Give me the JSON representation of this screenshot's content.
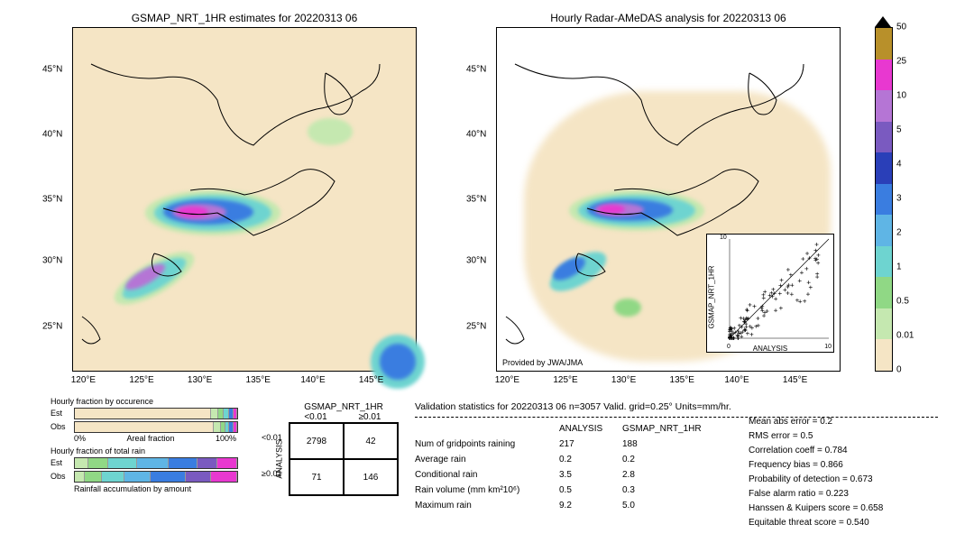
{
  "left_map": {
    "title": "GSMAP_NRT_1HR estimates for 20220313 06",
    "x_ticks": [
      "120°E",
      "125°E",
      "130°E",
      "135°E",
      "140°E",
      "145°E"
    ],
    "y_ticks": [
      "25°N",
      "30°N",
      "35°N",
      "40°N",
      "45°N"
    ],
    "xlim": [
      119,
      149
    ],
    "ylim": [
      21,
      48
    ],
    "bg_color": "#f5e5c5"
  },
  "right_map": {
    "title": "Hourly Radar-AMeDAS analysis for 20220313 06",
    "x_ticks": [
      "120°E",
      "125°E",
      "130°E",
      "135°E",
      "140°E",
      "145°E"
    ],
    "y_ticks": [
      "25°N",
      "30°N",
      "35°N",
      "40°N",
      "45°N"
    ],
    "attribution": "Provided by JWA/JMA"
  },
  "colorbar": {
    "labels": [
      "0",
      "0.01",
      "0.5",
      "1",
      "2",
      "3",
      "4",
      "5",
      "10",
      "25",
      "50"
    ],
    "colors": [
      "#f5e5c5",
      "#c5e8b0",
      "#90d885",
      "#6ed4d0",
      "#5fb5e5",
      "#3a7de0",
      "#2a3fb8",
      "#7a5ac0",
      "#b575d5",
      "#e838d0",
      "#b8902a"
    ],
    "arrow_top": "#000000"
  },
  "scatter": {
    "xlabel": "ANALYSIS",
    "ylabel": "GSMAP_NRT_1HR",
    "xlim": [
      0,
      10
    ],
    "ylim": [
      0,
      10
    ],
    "ticks": [
      0,
      2,
      4,
      6,
      8,
      10
    ]
  },
  "contingency": {
    "col_header": "GSMAP_NRT_1HR",
    "row_header": "ANALYSIS",
    "col_labels": [
      "<0.01",
      "≥0.01"
    ],
    "row_labels": [
      "<0.01",
      "≥0.01"
    ],
    "cells": [
      [
        2798,
        42
      ],
      [
        71,
        146
      ]
    ]
  },
  "bars": {
    "occurrence_title": "Hourly fraction by occurence",
    "totalrain_title": "Hourly fraction of total rain",
    "accum_title": "Rainfall accumulation by amount",
    "row_labels": [
      "Est",
      "Obs"
    ],
    "x_axis": [
      "0%",
      "Areal fraction",
      "100%"
    ],
    "occ_est": [
      {
        "c": "#f5e5c5",
        "w": 86
      },
      {
        "c": "#c5e8b0",
        "w": 4
      },
      {
        "c": "#90d885",
        "w": 3
      },
      {
        "c": "#6ed4d0",
        "w": 3
      },
      {
        "c": "#3a7de0",
        "w": 2
      },
      {
        "c": "#e838d0",
        "w": 2
      }
    ],
    "occ_obs": [
      {
        "c": "#f5e5c5",
        "w": 88
      },
      {
        "c": "#c5e8b0",
        "w": 4
      },
      {
        "c": "#90d885",
        "w": 2
      },
      {
        "c": "#6ed4d0",
        "w": 2
      },
      {
        "c": "#3a7de0",
        "w": 2
      },
      {
        "c": "#e838d0",
        "w": 2
      }
    ],
    "tot_est": [
      {
        "c": "#c5e8b0",
        "w": 8
      },
      {
        "c": "#90d885",
        "w": 12
      },
      {
        "c": "#6ed4d0",
        "w": 18
      },
      {
        "c": "#5fb5e5",
        "w": 20
      },
      {
        "c": "#3a7de0",
        "w": 18
      },
      {
        "c": "#7a5ac0",
        "w": 12
      },
      {
        "c": "#e838d0",
        "w": 12
      }
    ],
    "tot_obs": [
      {
        "c": "#c5e8b0",
        "w": 6
      },
      {
        "c": "#90d885",
        "w": 10
      },
      {
        "c": "#6ed4d0",
        "w": 14
      },
      {
        "c": "#5fb5e5",
        "w": 16
      },
      {
        "c": "#3a7de0",
        "w": 22
      },
      {
        "c": "#7a5ac0",
        "w": 16
      },
      {
        "c": "#e838d0",
        "w": 16
      }
    ]
  },
  "validation": {
    "title": "Validation statistics for 20220313 06  n=3057 Valid. grid=0.25° Units=mm/hr.",
    "col_headers": [
      "ANALYSIS",
      "GSMAP_NRT_1HR"
    ],
    "rows": [
      {
        "label": "Num of gridpoints raining",
        "a": "217",
        "b": "188"
      },
      {
        "label": "Average rain",
        "a": "0.2",
        "b": "0.2"
      },
      {
        "label": "Conditional rain",
        "a": "3.5",
        "b": "2.8"
      },
      {
        "label": "Rain volume (mm km²10⁶)",
        "a": "0.5",
        "b": "0.3"
      },
      {
        "label": "Maximum rain",
        "a": "9.2",
        "b": "5.0"
      }
    ],
    "right_stats": [
      "Mean abs error =   0.2",
      "RMS error =   0.5",
      "Correlation coeff =  0.784",
      "Frequency bias =  0.866",
      "Probability of detection =  0.673",
      "False alarm ratio =  0.223",
      "Hanssen & Kuipers score =  0.658",
      "Equitable threat score =  0.540"
    ]
  }
}
